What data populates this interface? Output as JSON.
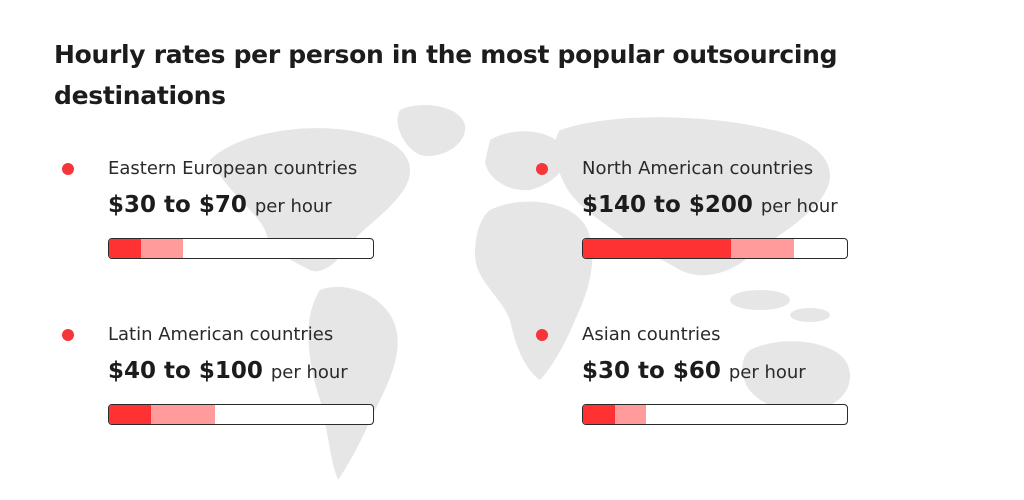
{
  "colors": {
    "dark_red": "#ff3233",
    "light_red": "#ff9b9b",
    "dot": "#f6353b",
    "outline": "#2b2b2b",
    "map": "#e6e6e6"
  },
  "chart_data": {
    "type": "bar",
    "title": "Hourly rates per person in the most popular outsourcing destinations",
    "unit": "per hour",
    "scale_max": 250,
    "series": [
      {
        "name": "Eastern European countries",
        "range_label": "$30 to $70",
        "min": 30,
        "max": 70
      },
      {
        "name": "North American countries",
        "range_label": "$140 to $200",
        "min": 140,
        "max": 200
      },
      {
        "name": "Latin American countries",
        "range_label": "$40 to $100",
        "min": 40,
        "max": 100
      },
      {
        "name": "Asian countries",
        "range_label": "$30 to $60",
        "min": 30,
        "max": 60
      }
    ]
  }
}
